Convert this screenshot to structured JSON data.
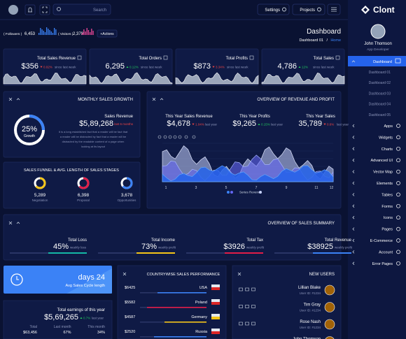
{
  "topbar": {
    "search": "Search",
    "settings": "Settings",
    "projects": "Projects"
  },
  "brand": "Clont",
  "stats": {
    "followers_label": "( Followers )",
    "followers": "6,453",
    "visitors_label": "( Visitors )",
    "visitors": "2,379",
    "actions": "+Actions"
  },
  "page": {
    "title": "Dashboard",
    "crumb": "Dashboard 01",
    "sep": "/",
    "home": "Home"
  },
  "kpis": [
    {
      "label": "Total Sales Revenue",
      "value": "$356",
      "delta": "0.02%",
      "note": "since last week",
      "color": "#ef4444"
    },
    {
      "label": "Total Orders",
      "value": "6,295",
      "delta": "0.12%",
      "note": "since last week",
      "color": "#22c55e"
    },
    {
      "label": "Total Profits",
      "value": "$873",
      "delta": "3.34%",
      "note": "since last week",
      "color": "#ef4444"
    },
    {
      "label": "Total Sales",
      "value": "4,786",
      "delta": "12%",
      "note": "since last week",
      "color": "#22c55e"
    }
  ],
  "growth": {
    "title": "MONTHLY SALES GROWTH",
    "percent": "25%",
    "percent_label": "Growth",
    "revenue_label": "Sales Revenue",
    "revenue": "$5,89,268",
    "revenue_note": "last 6 months",
    "text": [
      "It is a long established fact that a reader will be fact that",
      "a reader will be distracted by fact that a reader will be",
      "distracted by the readable content of a page when",
      "looking at its layout"
    ]
  },
  "funnel": {
    "title": "SALES FUNNEL & AVG. LENGTH OF SALES STAGES",
    "items": [
      {
        "value": "5,289",
        "label": "Negotiation",
        "color": "#f5c518"
      },
      {
        "value": "6,398",
        "label": "Proposal",
        "color": "#e11d48"
      },
      {
        "value": "3,678",
        "label": "Opportunities",
        "color": "#3b82f6"
      }
    ]
  },
  "overview": {
    "title": "OVERVIEW OF REVENUE AND PROFIT",
    "stats": [
      {
        "label": "This Year Sales Revenue",
        "value": "$4,678",
        "delta": "1.04%",
        "note": "last year",
        "color": "#ef4444"
      },
      {
        "label": "This Year Profits",
        "value": "$9,265",
        "delta": "0.15%",
        "note": "last year",
        "color": "#22c55e"
      },
      {
        "label": "This Year Sales",
        "value": "35,789",
        "delta": "0.6%",
        "note": "last year",
        "color": "#ef4444"
      }
    ],
    "x_labels": [
      "1",
      "3",
      "5",
      "7",
      "9",
      "11",
      "12"
    ],
    "legend": "Series Revenue"
  },
  "summary": {
    "title": "OVERVIEW OF SALES SUMMARY",
    "items": [
      {
        "label": "Total Loss",
        "value": "45%",
        "note": "weekly loss",
        "color": "#14b8a6"
      },
      {
        "label": "Total Income",
        "value": "73%",
        "note": "weekly profit",
        "color": "#f5c518"
      },
      {
        "label": "Total Tax",
        "value": "$3926",
        "note": "weekly profit",
        "color": "#e11d48"
      },
      {
        "label": "Total Revenue",
        "value": "$38925",
        "note": "weekly profit",
        "color": "#3b82f6"
      }
    ]
  },
  "cycle": {
    "value": "days 24",
    "label": "Avg Sales Cycle length"
  },
  "earnings": {
    "title": "Total earnings of this year",
    "value": "$5,69,265",
    "delta": "0.7%",
    "note": "last year",
    "cols": [
      {
        "label": "Total",
        "value": "$63,456"
      },
      {
        "label": "Last month",
        "value": "67%"
      },
      {
        "label": "This month",
        "value": "34%"
      }
    ]
  },
  "countries": {
    "title": "COUNTRYWISE SALES PERFORMANCE",
    "rows": [
      {
        "amount": "$6425",
        "country": "USA",
        "color": "#3b82f6"
      },
      {
        "amount": "$5582",
        "country": "Poland",
        "color": "#e11d48"
      },
      {
        "amount": "$4587",
        "country": "Germany",
        "color": "#f5c518"
      },
      {
        "amount": "$2520",
        "country": "Russia",
        "color": "#3b82f6"
      }
    ]
  },
  "users": {
    "title": "NEW USERS",
    "rows": [
      {
        "name": "Lillian Blake",
        "id": "User ID: #1234"
      },
      {
        "name": "Tim Gray",
        "id": "User ID: #1234"
      },
      {
        "name": "Rose Nash",
        "id": "User ID: #1234"
      },
      {
        "name": "John Thomson"
      }
    ]
  },
  "sidebar": {
    "name": "John Thomson",
    "role": "App Developer",
    "active": "Dashboard",
    "sub": [
      "Dashboard 01",
      "Dashboard 02",
      "Dashboard 03",
      "Dashboard 04",
      "Dashboard 05"
    ],
    "menu": [
      "Apps",
      "Widgets",
      "Charts",
      "Advanced UI",
      "Vector Map",
      "Elements",
      "Tables",
      "Forms",
      "Icons",
      "Pages",
      "E-Commerce",
      "Account",
      "Error Pages"
    ]
  }
}
